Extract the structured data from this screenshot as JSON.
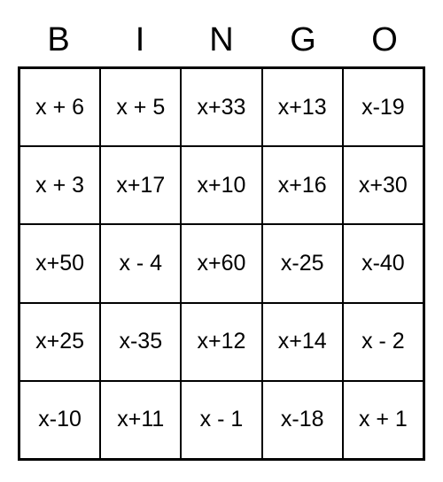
{
  "bingo": {
    "headers": [
      "B",
      "I",
      "N",
      "G",
      "O"
    ],
    "cells": [
      [
        "x + 6",
        "x + 5",
        "x+33",
        "x+13",
        "x-19"
      ],
      [
        "x + 3",
        "x+17",
        "x+10",
        "x+16",
        "x+30"
      ],
      [
        "x+50",
        "x - 4",
        "x+60",
        "x-25",
        "x-40"
      ],
      [
        "x+25",
        "x-35",
        "x+12",
        "x+14",
        "x - 2"
      ],
      [
        "x-10",
        "x+11",
        "x - 1",
        "x-18",
        "x + 1"
      ]
    ],
    "colors": {
      "background": "#ffffff",
      "border": "#000000",
      "text": "#000000"
    },
    "header_fontsize": 38,
    "cell_fontsize": 25
  }
}
